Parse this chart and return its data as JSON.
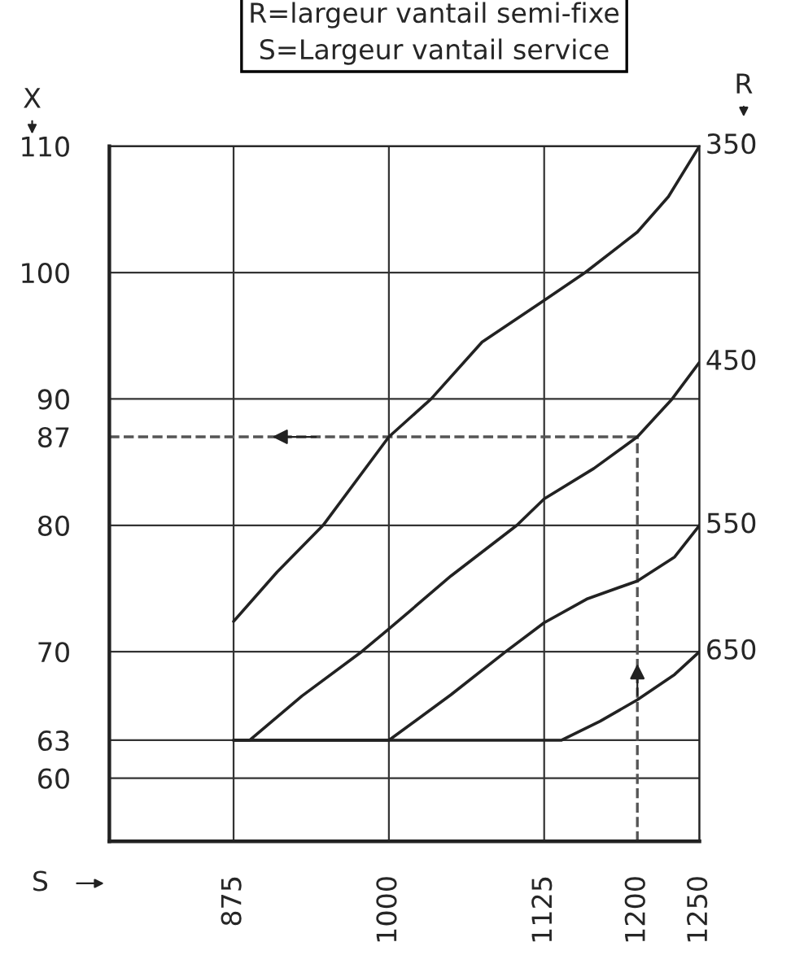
{
  "chart_data": {
    "type": "line",
    "xlabel": "S",
    "ylabel": "X",
    "y2label": "R",
    "annotations": [
      "R=largeur vantail semi-fixe",
      "S=Largeur vantail service"
    ],
    "xlim": [
      775,
      1250
    ],
    "xticks": [
      875,
      1000,
      1125,
      1200,
      1250
    ],
    "ylim": [
      55,
      110
    ],
    "yticks": [
      60,
      63,
      70,
      80,
      87,
      90,
      100,
      110
    ],
    "grid": true,
    "legend": "right",
    "marker": "none",
    "line_style": "solid",
    "series": [
      {
        "name": "350",
        "color": "#222222",
        "x": [
          875,
          910,
          947,
          1000,
          1034,
          1075,
          1125,
          1158,
          1200,
          1225,
          1250
        ],
        "values": [
          72.4,
          76.3,
          80,
          87,
          90,
          94.5,
          97.8,
          100,
          103.2,
          106,
          110
        ]
      },
      {
        "name": "450",
        "color": "#222222",
        "x": [
          875,
          888,
          930,
          978,
          1000,
          1050,
          1103,
          1125,
          1165,
          1200,
          1228,
          1250
        ],
        "values": [
          63,
          63,
          66.5,
          70,
          71.8,
          76,
          80,
          82.1,
          84.5,
          87,
          90,
          92.9
        ]
      },
      {
        "name": "550",
        "color": "#222222",
        "x": [
          875,
          1000,
          1050,
          1094,
          1125,
          1160,
          1200,
          1230,
          1250
        ],
        "values": [
          63,
          63,
          66.6,
          70,
          72.3,
          74.2,
          75.6,
          77.5,
          80
        ]
      },
      {
        "name": "650",
        "color": "#222222",
        "x": [
          875,
          1139,
          1170,
          1200,
          1230,
          1250
        ],
        "values": [
          63,
          63,
          64.5,
          66.2,
          68.2,
          70
        ]
      }
    ],
    "ref_lines": [
      {
        "axis": "y",
        "value": 87,
        "line_style": "dashed",
        "color": "#555555"
      },
      {
        "axis": "x",
        "value": 1200,
        "line_style": "dashed",
        "color": "#555555"
      }
    ]
  }
}
